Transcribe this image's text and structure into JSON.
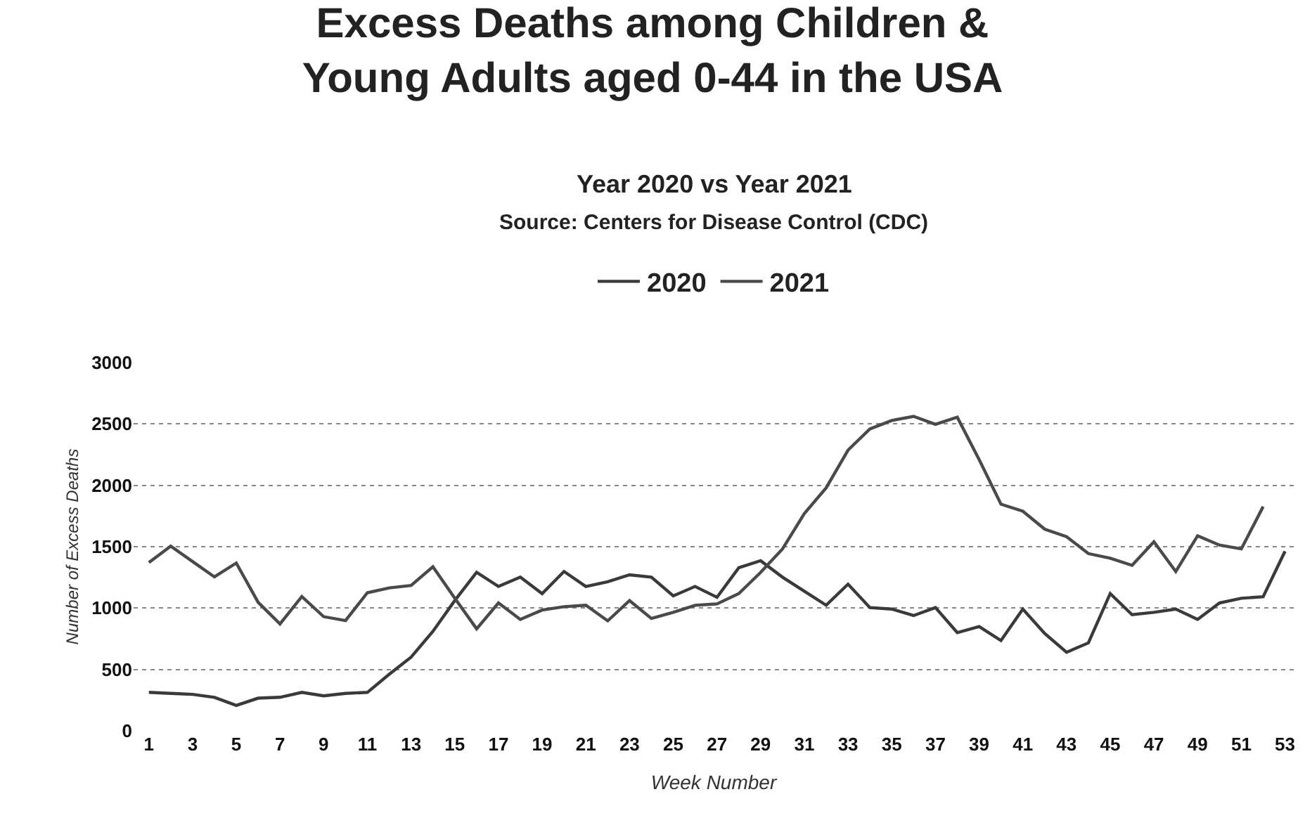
{
  "chart_data": {
    "type": "line",
    "title": "Excess Deaths among Children &\nYoung Adults aged 0-44 in the USA",
    "subtitle": "Year 2020 vs Year 2021",
    "annotations": [
      "Source: Centers for Disease Control (CDC)"
    ],
    "xlabel": "Week Number",
    "ylabel": "Number of Excess Deaths",
    "x": [
      1,
      2,
      3,
      4,
      5,
      6,
      7,
      8,
      9,
      10,
      11,
      12,
      13,
      14,
      15,
      16,
      17,
      18,
      19,
      20,
      21,
      22,
      23,
      24,
      25,
      26,
      27,
      28,
      29,
      30,
      31,
      32,
      33,
      34,
      35,
      36,
      37,
      38,
      39,
      40,
      41,
      42,
      43,
      44,
      45,
      46,
      47,
      48,
      49,
      50,
      51,
      52,
      53
    ],
    "series": [
      {
        "name": "2020",
        "color": "#3a3a3a",
        "values": [
          313,
          305,
          297,
          273,
          207,
          266,
          273,
          313,
          285,
          305,
          313,
          461,
          600,
          810,
          1061,
          1291,
          1176,
          1252,
          1118,
          1298,
          1176,
          1214,
          1271,
          1252,
          1099,
          1176,
          1088,
          1329,
          1386,
          1252,
          1137,
          1023,
          1195,
          1004,
          992,
          939,
          1004,
          800,
          850,
          735,
          992,
          793,
          640,
          716,
          1118,
          946,
          965,
          992,
          908,
          1042,
          1080,
          1092,
          1463
        ]
      },
      {
        "name": "2021",
        "color": "#4a4a4a",
        "values": [
          1371,
          1504,
          1379,
          1254,
          1367,
          1047,
          871,
          1094,
          930,
          898,
          1125,
          1164,
          1184,
          1337,
          1080,
          831,
          1042,
          908,
          984,
          1011,
          1023,
          896,
          1061,
          915,
          965,
          1023,
          1034,
          1118,
          1291,
          1482,
          1770,
          1980,
          2287,
          2459,
          2528,
          2562,
          2497,
          2555,
          2210,
          1846,
          1789,
          1643,
          1582,
          1444,
          1406,
          1348,
          1540,
          1298,
          1589,
          1513,
          1482,
          1827,
          null
        ]
      }
    ],
    "xlim": [
      0.3,
      53.4
    ],
    "xticks": [
      1,
      3,
      5,
      7,
      9,
      11,
      13,
      15,
      17,
      19,
      21,
      23,
      25,
      27,
      29,
      31,
      33,
      35,
      37,
      39,
      41,
      43,
      45,
      47,
      49,
      51,
      53
    ],
    "ylim": [
      0,
      3000
    ],
    "yticks": [
      0,
      500,
      1000,
      1500,
      2000,
      2500,
      3000
    ],
    "grid": "y",
    "legend": "top",
    "marker": "none",
    "line_style": "solid"
  }
}
